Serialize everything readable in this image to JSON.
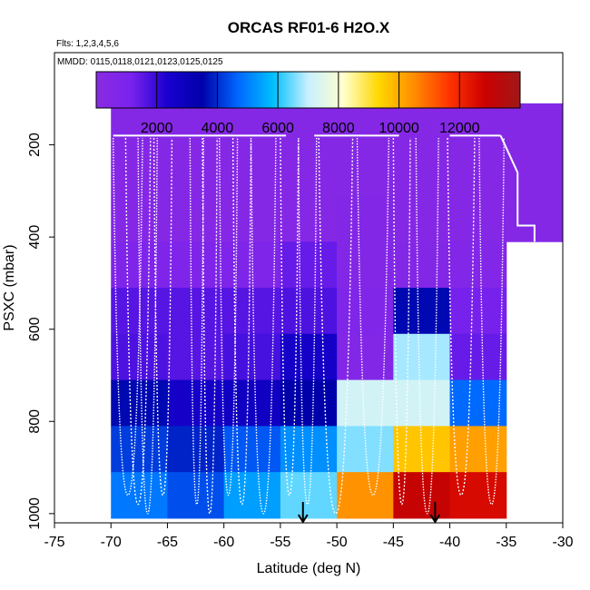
{
  "chart_data": {
    "type": "heatmap",
    "title": "ORCAS RF01-6 H2O.X",
    "subtitle_flights": "Flts: 1,2,3,4,5,6",
    "subtitle_dates": "MMDD: 0115,0118,0121,0123,0125,0125",
    "xlabel": "Latitude (deg N)",
    "ylabel": "PSXC (mbar)",
    "xlim": [
      -75,
      -30
    ],
    "ylim": [
      1020,
      0
    ],
    "x_ticks": [
      "-75",
      "-70",
      "-65",
      "-60",
      "-55",
      "-50",
      "-45",
      "-40",
      "-35",
      "-30"
    ],
    "x_tick_values": [
      -75,
      -70,
      -65,
      -60,
      -55,
      -50,
      -45,
      -40,
      -35,
      -30
    ],
    "y_ticks": [
      "200",
      "400",
      "600",
      "800",
      "1000"
    ],
    "y_tick_values": [
      200,
      400,
      600,
      800,
      1000
    ],
    "colorbar": {
      "range": [
        0,
        14000
      ],
      "tick_labels": [
        "2000",
        "4000",
        "6000",
        "8000",
        "10000",
        "12000"
      ],
      "tick_values": [
        2000,
        4000,
        6000,
        8000,
        10000,
        12000
      ],
      "stops": [
        "#8a2be2",
        "#7a22ee",
        "#1a00d0",
        "#0000aa",
        "#0066ff",
        "#00bfff",
        "#c8f0ff",
        "#ffffcc",
        "#ffd700",
        "#ff8c00",
        "#ff3300",
        "#cc0000",
        "#a01818"
      ]
    },
    "grid": {
      "lat_edges": [
        -70,
        -65,
        -60,
        -55,
        -50,
        -45,
        -40,
        -35,
        -30
      ],
      "pressure_edges": [
        110,
        210,
        310,
        410,
        510,
        610,
        710,
        810,
        910,
        1010
      ],
      "values": [
        [
          400,
          400,
          400,
          400,
          400,
          400,
          400,
          400
        ],
        [
          400,
          400,
          400,
          400,
          400,
          400,
          400,
          400
        ],
        [
          400,
          400,
          400,
          400,
          500,
          400,
          400,
          400
        ],
        [
          800,
          800,
          800,
          1400,
          500,
          500,
          600,
          null
        ],
        [
          1600,
          1600,
          1600,
          1700,
          700,
          3600,
          1200,
          null
        ],
        [
          1700,
          1600,
          1800,
          2600,
          500,
          6800,
          1400,
          null
        ],
        [
          3600,
          2600,
          2800,
          3500,
          7200,
          7200,
          4700,
          null
        ],
        [
          4200,
          3900,
          4500,
          5200,
          6600,
          9600,
          10200,
          null
        ],
        [
          4900,
          4400,
          5400,
          6400,
          10400,
          13000,
          12600,
          null
        ]
      ]
    },
    "markers": [
      {
        "type": "arrow",
        "lat": -53.0,
        "pressure": 1020
      },
      {
        "type": "arrow",
        "lat": -41.3,
        "pressure": 1020
      }
    ]
  }
}
